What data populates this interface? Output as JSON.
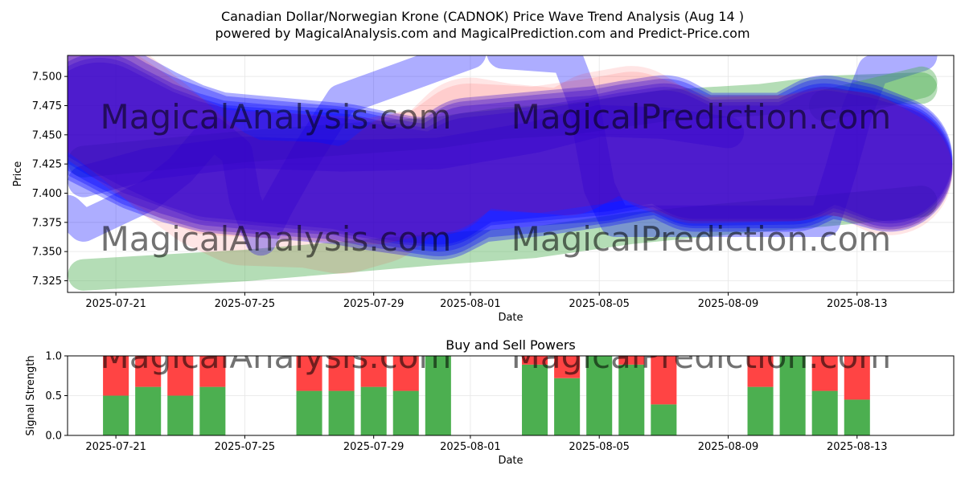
{
  "title_line1": "Canadian Dollar/Norwegian Krone (CADNOK) Price Wave Trend Analysis (Aug 14 )",
  "title_line2": "powered by MagicalAnalysis.com and MagicalPrediction.com and Predict-Price.com",
  "watermark_left": "MagicalAnalysis.com",
  "watermark_right": "MagicalPrediction.com",
  "colors": {
    "band_green": "#4caf50",
    "band_blue": "#0000ff",
    "band_red": "#ff0000",
    "buy": "#4caf50",
    "sell": "#ff4444",
    "grid": "#e6e6e6",
    "watermark": "#d8d8d8"
  },
  "chart_data": [
    {
      "type": "line",
      "title": "",
      "xlabel": "Date",
      "ylabel": "Price",
      "x_ticks": [
        "2025-07-21",
        "2025-07-25",
        "2025-07-29",
        "2025-08-01",
        "2025-08-05",
        "2025-08-09",
        "2025-08-13"
      ],
      "y_ticks": [
        "7.325",
        "7.350",
        "7.375",
        "7.400",
        "7.425",
        "7.450",
        "7.475",
        "7.500"
      ],
      "ylim": [
        7.315,
        7.518
      ],
      "xlim": [
        "2025-07-19T12:00",
        "2025-08-16T00:00"
      ],
      "grid": true,
      "bands": [
        {
          "color": "green",
          "width": 7.027,
          "points": [
            [
              "2025-07-20",
              7.33
            ],
            [
              "2025-07-25",
              7.338
            ],
            [
              "2025-07-28",
              7.345
            ],
            [
              "2025-07-31",
              7.352
            ],
            [
              "2025-08-03",
              7.358
            ],
            [
              "2025-08-06",
              7.37
            ],
            [
              "2025-08-09",
              7.378
            ],
            [
              "2025-08-12",
              7.385
            ],
            [
              "2025-08-15",
              7.393
            ]
          ]
        },
        {
          "color": "green",
          "width": 7.027,
          "points": [
            [
              "2025-07-20",
              7.427
            ],
            [
              "2025-07-25",
              7.44
            ],
            [
              "2025-07-28",
              7.446
            ],
            [
              "2025-07-31",
              7.452
            ],
            [
              "2025-08-02",
              7.46
            ],
            [
              "2025-08-04",
              7.463
            ],
            [
              "2025-08-07",
              7.475
            ],
            [
              "2025-08-10",
              7.48
            ],
            [
              "2025-08-12",
              7.487
            ],
            [
              "2025-08-15",
              7.49
            ]
          ]
        },
        {
          "color": "blue",
          "width": 7.027,
          "points": [
            [
              "2025-07-19T12:00",
              7.385
            ],
            [
              "2025-07-20",
              7.372
            ],
            [
              "2025-07-22",
              7.398
            ],
            [
              "2025-07-23",
              7.42
            ],
            [
              "2025-07-24",
              7.452
            ],
            [
              "2025-07-24T18:00",
              7.435
            ],
            [
              "2025-07-25",
              7.395
            ],
            [
              "2025-07-25T12:00",
              7.36
            ],
            [
              "2025-07-26",
              7.388
            ],
            [
              "2025-07-27",
              7.437
            ],
            [
              "2025-07-28",
              7.48
            ],
            [
              "2025-07-30",
              7.5
            ],
            [
              "2025-08-01",
              7.52
            ]
          ]
        },
        {
          "color": "blue",
          "width": 7.027,
          "points": [
            [
              "2025-07-20",
              7.41
            ],
            [
              "2025-07-22",
              7.425
            ],
            [
              "2025-07-25",
              7.435
            ],
            [
              "2025-07-28",
              7.432
            ],
            [
              "2025-07-31",
              7.434
            ],
            [
              "2025-08-03",
              7.448
            ],
            [
              "2025-08-05",
              7.462
            ],
            [
              "2025-08-07",
              7.46
            ],
            [
              "2025-08-09",
              7.452
            ]
          ]
        },
        {
          "color": "blue",
          "width": 7.027,
          "points": [
            [
              "2025-08-02",
              7.52
            ],
            [
              "2025-08-04",
              7.516
            ],
            [
              "2025-08-04T12:00",
              7.48
            ],
            [
              "2025-08-05",
              7.405
            ],
            [
              "2025-08-05T12:00",
              7.376
            ],
            [
              "2025-08-08",
              7.376
            ],
            [
              "2025-08-12",
              7.376
            ],
            [
              "2025-08-12T12:00",
              7.42
            ],
            [
              "2025-08-13",
              7.47
            ],
            [
              "2025-08-13T12:00",
              7.505
            ],
            [
              "2025-08-15",
              7.518
            ]
          ]
        },
        {
          "color": "green",
          "width": 7.027,
          "points": [
            [
              "2025-08-12",
              7.475
            ],
            [
              "2025-08-15",
              7.495
            ]
          ]
        },
        {
          "color": "blue",
          "width": 5.108,
          "points": [
            [
              "2025-07-20T12:00",
              7.466
            ],
            [
              "2025-07-21",
              7.458
            ],
            [
              "2025-07-22",
              7.444
            ],
            [
              "2025-07-23",
              7.434
            ],
            [
              "2025-07-24",
              7.426
            ],
            [
              "2025-07-26",
              7.421
            ],
            [
              "2025-07-28",
              7.418
            ],
            [
              "2025-07-29",
              7.412
            ],
            [
              "2025-07-30",
              7.407
            ],
            [
              "2025-07-31",
              7.404
            ],
            [
              "2025-08-01",
              7.421
            ],
            [
              "2025-08-03",
              7.426
            ],
            [
              "2025-08-05",
              7.43
            ],
            [
              "2025-08-06",
              7.436
            ],
            [
              "2025-08-07",
              7.44
            ],
            [
              "2025-08-08",
              7.426
            ],
            [
              "2025-08-11",
              7.427
            ],
            [
              "2025-08-12",
              7.44
            ],
            [
              "2025-08-13",
              7.435
            ],
            [
              "2025-08-14",
              7.425
            ]
          ]
        },
        {
          "color": "blue",
          "width": 5.108,
          "points": [
            [
              "2025-07-20T12:00",
              7.462
            ],
            [
              "2025-07-21",
              7.455
            ],
            [
              "2025-07-22",
              7.44
            ],
            [
              "2025-07-23",
              7.43
            ],
            [
              "2025-07-24",
              7.422
            ],
            [
              "2025-07-26",
              7.418
            ],
            [
              "2025-07-28",
              7.414
            ],
            [
              "2025-07-29",
              7.408
            ],
            [
              "2025-07-30",
              7.404
            ],
            [
              "2025-07-31",
              7.4
            ],
            [
              "2025-08-01",
              7.415
            ],
            [
              "2025-08-03",
              7.42
            ],
            [
              "2025-08-05",
              7.428
            ],
            [
              "2025-08-06",
              7.433
            ],
            [
              "2025-08-07",
              7.437
            ],
            [
              "2025-08-08",
              7.424
            ],
            [
              "2025-08-11",
              7.424
            ],
            [
              "2025-08-12",
              7.437
            ],
            [
              "2025-08-13",
              7.432
            ],
            [
              "2025-08-14",
              7.423
            ]
          ]
        },
        {
          "color": "blue",
          "width": 5.108,
          "points": [
            [
              "2025-07-20T12:00",
              7.458
            ],
            [
              "2025-07-21",
              7.451
            ],
            [
              "2025-07-22",
              7.437
            ],
            [
              "2025-07-23",
              7.427
            ],
            [
              "2025-07-24",
              7.42
            ],
            [
              "2025-07-26",
              7.415
            ],
            [
              "2025-07-28",
              7.41
            ],
            [
              "2025-07-29",
              7.405
            ],
            [
              "2025-07-30",
              7.401
            ],
            [
              "2025-07-31",
              7.397
            ],
            [
              "2025-08-01",
              7.411
            ],
            [
              "2025-08-03",
              7.417
            ],
            [
              "2025-08-05",
              7.425
            ],
            [
              "2025-08-06",
              7.43
            ],
            [
              "2025-08-07",
              7.434
            ],
            [
              "2025-08-08",
              7.421
            ],
            [
              "2025-08-11",
              7.421
            ],
            [
              "2025-08-12",
              7.434
            ],
            [
              "2025-08-13",
              7.429
            ],
            [
              "2025-08-14",
              7.421
            ]
          ]
        },
        {
          "color": "blue",
          "width": 5.108,
          "points": [
            [
              "2025-07-20T12:00",
              7.472
            ],
            [
              "2025-07-21",
              7.464
            ],
            [
              "2025-07-22",
              7.45
            ],
            [
              "2025-07-23",
              7.44
            ],
            [
              "2025-07-24",
              7.43
            ],
            [
              "2025-07-26",
              7.425
            ],
            [
              "2025-07-28",
              7.42
            ],
            [
              "2025-07-29",
              7.415
            ],
            [
              "2025-07-30",
              7.41
            ],
            [
              "2025-07-31",
              7.408
            ],
            [
              "2025-08-01",
              7.425
            ],
            [
              "2025-08-03",
              7.43
            ],
            [
              "2025-08-05",
              7.435
            ],
            [
              "2025-08-06",
              7.44
            ],
            [
              "2025-08-07",
              7.444
            ],
            [
              "2025-08-08",
              7.43
            ],
            [
              "2025-08-11",
              7.43
            ],
            [
              "2025-08-12",
              7.444
            ],
            [
              "2025-08-13",
              7.438
            ],
            [
              "2025-08-14",
              7.428
            ]
          ]
        },
        {
          "color": "blue",
          "width": 5.108,
          "points": [
            [
              "2025-07-20T12:00",
              7.478
            ],
            [
              "2025-07-21",
              7.47
            ],
            [
              "2025-07-22",
              7.455
            ],
            [
              "2025-07-23",
              7.442
            ],
            [
              "2025-07-24",
              7.433
            ],
            [
              "2025-07-26",
              7.428
            ],
            [
              "2025-07-28",
              7.423
            ],
            [
              "2025-07-29",
              7.417
            ],
            [
              "2025-07-30",
              7.412
            ],
            [
              "2025-07-31",
              7.41
            ],
            [
              "2025-08-01",
              7.428
            ],
            [
              "2025-08-03",
              7.433
            ],
            [
              "2025-08-05",
              7.438
            ],
            [
              "2025-08-06",
              7.443
            ],
            [
              "2025-08-07",
              7.447
            ],
            [
              "2025-08-08",
              7.432
            ],
            [
              "2025-08-11",
              7.432
            ],
            [
              "2025-08-12",
              7.447
            ],
            [
              "2025-08-13",
              7.441
            ],
            [
              "2025-08-14",
              7.43
            ]
          ]
        },
        {
          "color": "red",
          "width": 5.108,
          "points": [
            [
              "2025-07-20T12:00",
              7.482
            ],
            [
              "2025-07-21",
              7.472
            ],
            [
              "2025-07-22",
              7.45
            ],
            [
              "2025-07-23",
              7.425
            ],
            [
              "2025-07-24",
              7.405
            ],
            [
              "2025-07-25",
              7.392
            ],
            [
              "2025-07-27",
              7.39
            ],
            [
              "2025-07-28",
              7.385
            ],
            [
              "2025-07-29",
              7.393
            ],
            [
              "2025-07-30",
              7.415
            ],
            [
              "2025-07-31",
              7.418
            ],
            [
              "2025-08-01",
              7.445
            ],
            [
              "2025-08-02",
              7.44
            ],
            [
              "2025-08-04",
              7.435
            ],
            [
              "2025-08-05",
              7.45
            ],
            [
              "2025-08-06",
              7.455
            ],
            [
              "2025-08-07",
              7.437
            ],
            [
              "2025-08-08",
              7.428
            ],
            [
              "2025-08-11",
              7.43
            ],
            [
              "2025-08-12",
              7.435
            ],
            [
              "2025-08-13",
              7.433
            ],
            [
              "2025-08-14",
              7.418
            ]
          ]
        },
        {
          "color": "red",
          "width": 5.108,
          "points": [
            [
              "2025-07-20T12:00",
              7.475
            ],
            [
              "2025-07-21",
              7.466
            ],
            [
              "2025-07-22",
              7.446
            ],
            [
              "2025-07-23",
              7.43
            ],
            [
              "2025-07-24",
              7.418
            ],
            [
              "2025-07-26",
              7.415
            ],
            [
              "2025-07-28",
              7.412
            ],
            [
              "2025-07-29",
              7.41
            ],
            [
              "2025-07-30",
              7.416
            ],
            [
              "2025-07-31",
              7.42
            ],
            [
              "2025-08-01",
              7.44
            ],
            [
              "2025-08-03",
              7.437
            ],
            [
              "2025-08-05",
              7.445
            ],
            [
              "2025-08-06",
              7.45
            ],
            [
              "2025-08-07",
              7.44
            ],
            [
              "2025-08-08",
              7.43
            ],
            [
              "2025-08-11",
              7.43
            ],
            [
              "2025-08-12",
              7.437
            ],
            [
              "2025-08-13",
              7.432
            ],
            [
              "2025-08-14",
              7.422
            ]
          ]
        }
      ]
    },
    {
      "type": "bar",
      "title": "Buy and Sell Powers",
      "xlabel": "Date",
      "ylabel": "Signal Strength",
      "x_ticks": [
        "2025-07-21",
        "2025-07-25",
        "2025-07-29",
        "2025-08-01",
        "2025-08-05",
        "2025-08-09",
        "2025-08-13"
      ],
      "y_ticks": [
        "0.0",
        "0.5",
        "1.0"
      ],
      "ylim": [
        0,
        1
      ],
      "xlim": [
        "2025-07-19T12:00",
        "2025-08-16T00:00"
      ],
      "grid": true,
      "categories": [
        "2025-07-21",
        "2025-07-22",
        "2025-07-23",
        "2025-07-24",
        "2025-07-27",
        "2025-07-28",
        "2025-07-29",
        "2025-07-30",
        "2025-07-31",
        "2025-08-03",
        "2025-08-04",
        "2025-08-05",
        "2025-08-06",
        "2025-08-07",
        "2025-08-10",
        "2025-08-11",
        "2025-08-12",
        "2025-08-13"
      ],
      "series": [
        {
          "name": "Buy",
          "values": [
            0.5,
            0.61,
            0.5,
            0.61,
            0.56,
            0.56,
            0.61,
            0.56,
            1.0,
            0.89,
            0.72,
            1.0,
            0.89,
            0.39,
            0.61,
            1.0,
            0.56,
            0.45
          ]
        },
        {
          "name": "Sell",
          "values": [
            0.5,
            0.39,
            0.5,
            0.39,
            0.44,
            0.44,
            0.39,
            0.44,
            0.0,
            0.11,
            0.28,
            0.0,
            0.11,
            0.61,
            0.39,
            0.0,
            0.44,
            0.55
          ]
        }
      ]
    }
  ]
}
